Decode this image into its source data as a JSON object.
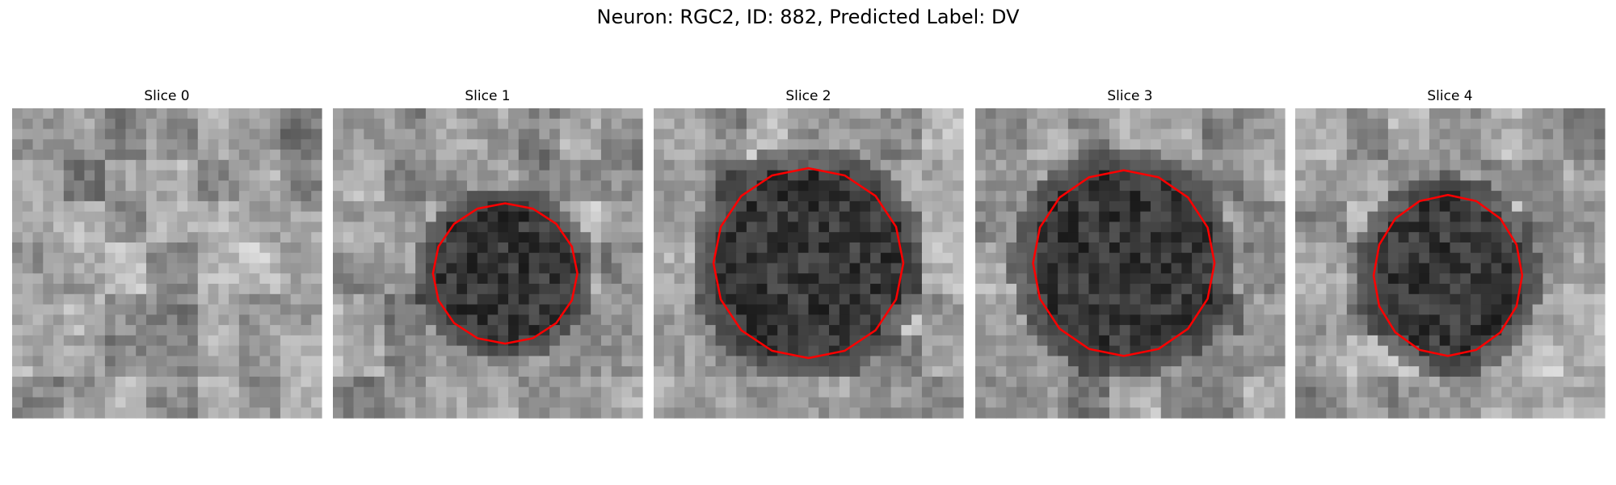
{
  "title": "Neuron: RGC2, ID: 882, Predicted Label: DV",
  "panels": [
    {
      "title": "Slice 0"
    },
    {
      "title": "Slice 1"
    },
    {
      "title": "Slice 2"
    },
    {
      "title": "Slice 3"
    },
    {
      "title": "Slice 4"
    }
  ]
}
